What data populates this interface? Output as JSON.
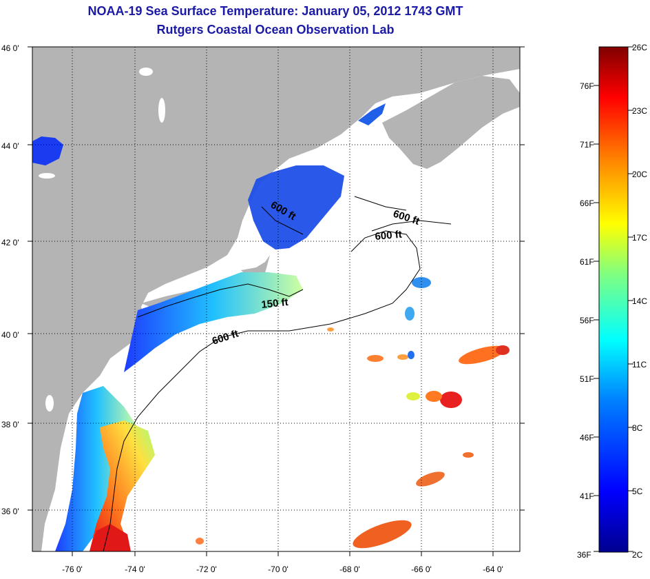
{
  "title": {
    "line1": "NOAA-19 Sea Surface Temperature:  January 05, 2012 1743 GMT",
    "line2": "Rutgers Coastal Ocean Observation Lab"
  },
  "axes": {
    "lat_labels": [
      "46 0'",
      "44 0'",
      "42 0'",
      "40 0'",
      "38 0'",
      "36 0'"
    ],
    "lon_labels": [
      "-76 0'",
      "-74 0'",
      "-72 0'",
      "-70 0'",
      "-68 0'",
      "-66 0'",
      "-64 0'"
    ]
  },
  "contours": [
    "600 ft",
    "600 ft",
    "600 ft",
    "150 ft",
    "600 ft"
  ],
  "colorbar": {
    "celsius": [
      "26C",
      "23C",
      "20C",
      "17C",
      "14C",
      "11C",
      "8C",
      "5C",
      "2C"
    ],
    "fahrenheit": [
      "76F",
      "71F",
      "66F",
      "61F",
      "56F",
      "51F",
      "46F",
      "41F",
      "36F"
    ]
  },
  "colors": {
    "land": "#b4b4b4",
    "ocean": "#ffffff",
    "title": "#1a1aa6"
  }
}
